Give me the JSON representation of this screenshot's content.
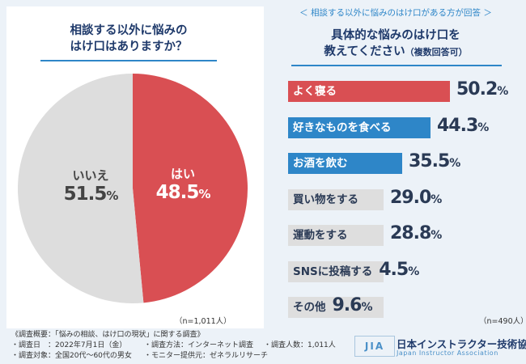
{
  "left": {
    "title_line1": "相談する以外に悩みの",
    "title_line2": "はけ口はありますか？",
    "n_note": "（n=1,011人）"
  },
  "right": {
    "header": "＜ 相談する以外に悩みのはけ口がある方が回答 ＞",
    "title_line1": "具体的な悩みのはけ口を",
    "title_line2": "教えてください",
    "title_suffix": "（複数回答可）",
    "n_note": "（n=490人）"
  },
  "chart_data": [
    {
      "type": "pie",
      "title": "相談する以外に悩みのはけ口はありますか？",
      "slices": [
        {
          "label": "はい",
          "value": 48.5,
          "color": "#d94f53"
        },
        {
          "label": "いいえ",
          "value": 51.5,
          "color": "#dddddd"
        }
      ],
      "unit": "%"
    },
    {
      "type": "bar",
      "title": "具体的な悩みのはけ口を教えてください（複数回答可）",
      "unit": "%",
      "xlim": [
        0,
        55
      ],
      "categories": [
        "よく寝る",
        "好きなものを食べる",
        "お酒を飲む",
        "買い物をする",
        "運動をする",
        "SNSに投稿する",
        "その他"
      ],
      "values": [
        50.2,
        44.3,
        35.5,
        29.0,
        28.8,
        4.5,
        9.6
      ],
      "colors": [
        "#d94f53",
        "#2e86c8",
        "#2e86c8",
        "#dedede",
        "#dedede",
        "#dedede",
        "#dedede"
      ],
      "label_colors": [
        "#ffffff",
        "#ffffff",
        "#ffffff",
        "#2a3a55",
        "#2a3a55",
        "#2a3a55",
        "#2a3a55"
      ]
    }
  ],
  "footer": {
    "summary": "《調査概要：「悩みの相談、はけ口の現状」に関する調査》",
    "date": "・調査日　：2022年7月1日（金）",
    "method": "・調査方法：インターネット調査",
    "count": "・調査人数：1,011人",
    "target": "・調査対象：全国20代～60代の男女",
    "provider": "・モニター提供元：ゼネラルリサーチ"
  },
  "logo": {
    "mark": "JIA",
    "name_jp": "日本インストラクター技術協会",
    "name_en": "Japan Instructor Association"
  }
}
